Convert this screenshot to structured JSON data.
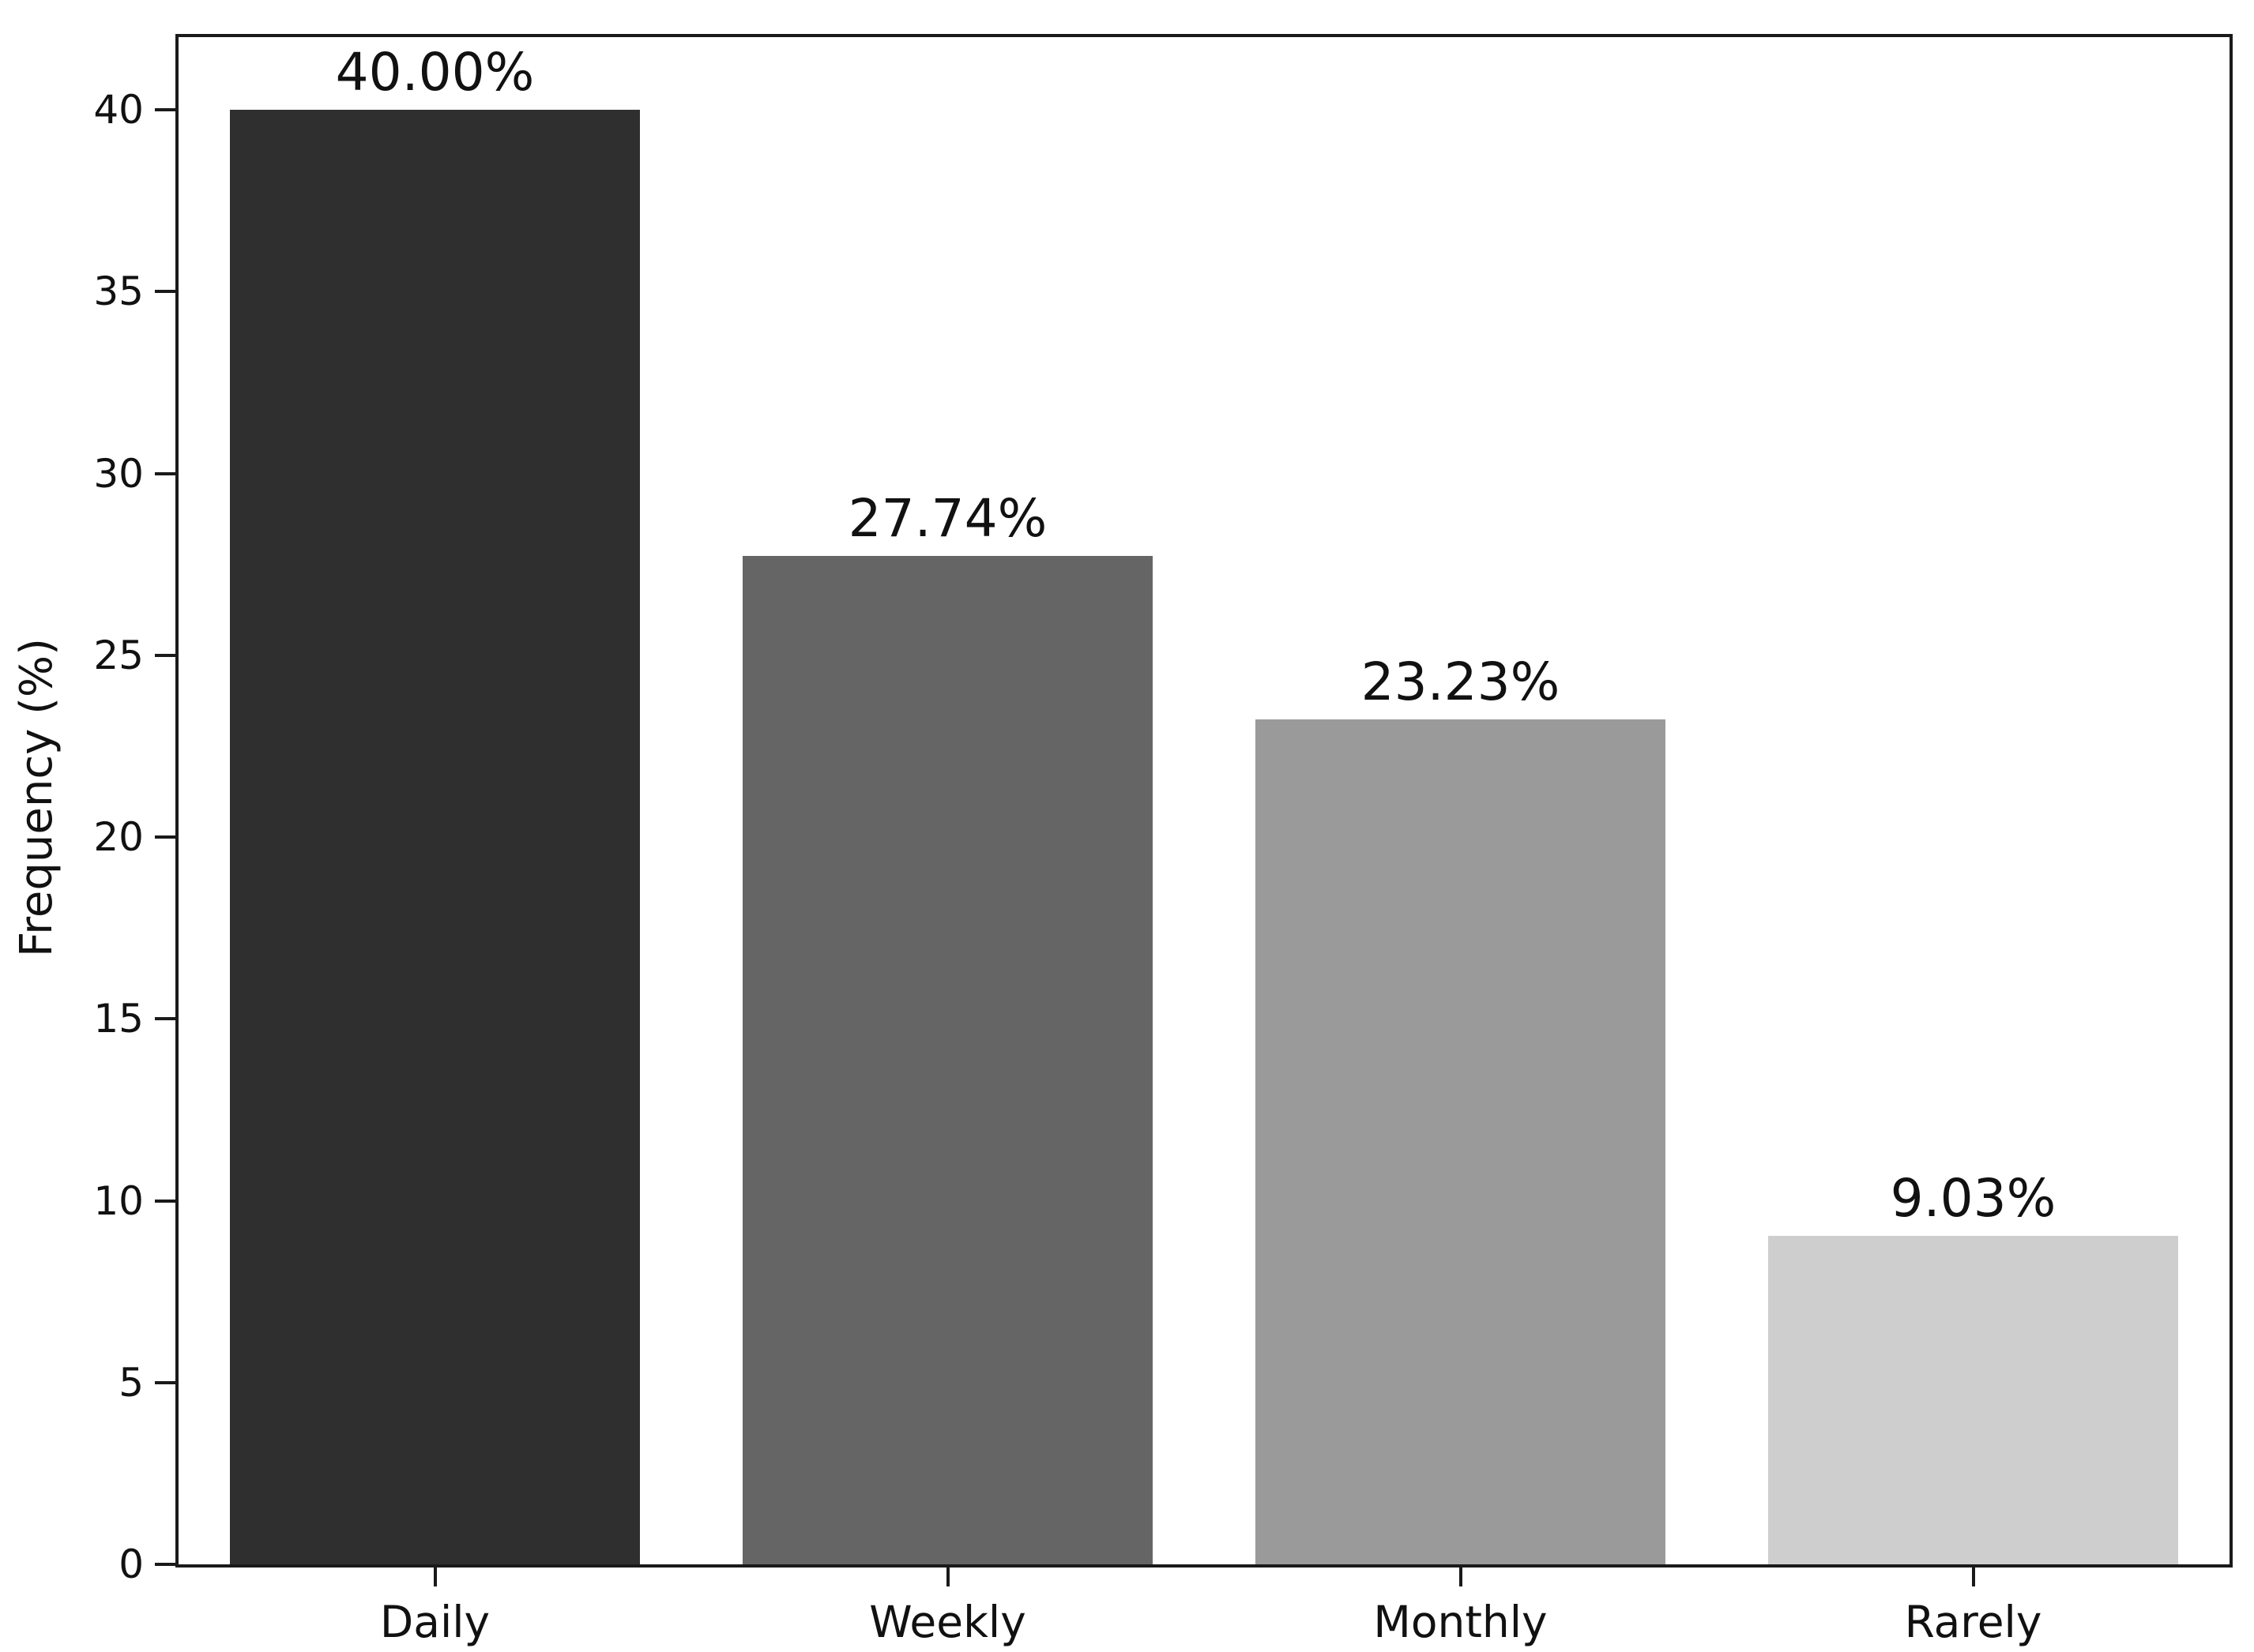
{
  "chart_data": {
    "type": "bar",
    "categories": [
      "Daily",
      "Weekly",
      "Monthly",
      "Rarely"
    ],
    "values": [
      40.0,
      27.74,
      23.23,
      9.03
    ],
    "value_labels": [
      "40.00%",
      "27.74%",
      "23.23%",
      "9.03%"
    ],
    "bar_colors": [
      "#2f2f2f",
      "#656565",
      "#9a9a9a",
      "#cecece"
    ],
    "title": "",
    "xlabel": "",
    "ylabel": "Frequency (%)",
    "ylim": [
      0,
      42
    ],
    "yticks": [
      0,
      5,
      10,
      15,
      20,
      25,
      30,
      35,
      40
    ],
    "grid": false,
    "legend": false
  },
  "colors": {
    "axis": "#1a1a1a",
    "text": "#111111",
    "background": "#ffffff"
  }
}
